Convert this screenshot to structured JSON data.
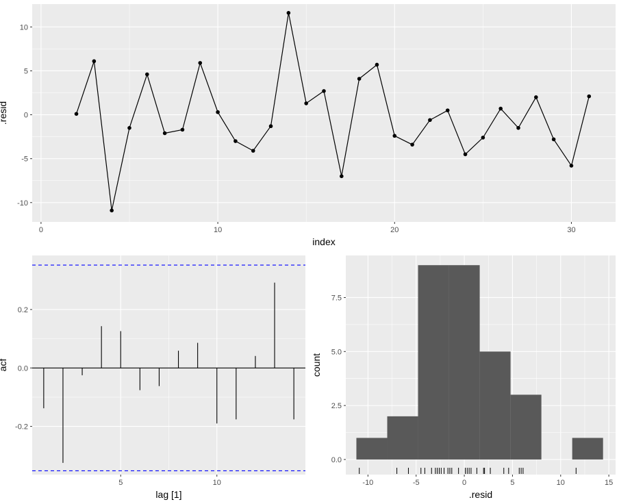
{
  "chart_data": [
    {
      "type": "line",
      "xlabel": "index",
      "ylabel": ".resid",
      "xlim": [
        -0.5,
        32.5
      ],
      "ylim": [
        -12.2,
        12.6
      ],
      "xticks": [
        0,
        10,
        20,
        30
      ],
      "yticks": [
        -10,
        -5,
        0,
        5,
        10
      ],
      "xtick_labels": [
        "0",
        "10",
        "20",
        "30"
      ],
      "ytick_labels": [
        "-10",
        "-5",
        "0",
        "5",
        "10"
      ],
      "x": [
        2,
        3,
        4,
        5,
        6,
        7,
        8,
        9,
        10,
        11,
        12,
        13,
        14,
        15,
        16,
        17,
        18,
        19,
        20,
        21,
        22,
        23,
        24,
        25,
        26,
        27,
        28,
        29,
        30,
        31
      ],
      "y": [
        0.1,
        6.1,
        -10.9,
        -1.5,
        4.6,
        -2.1,
        -1.7,
        5.9,
        0.3,
        -3.0,
        -4.1,
        -1.3,
        11.6,
        1.3,
        2.7,
        -7.0,
        4.1,
        5.7,
        -2.4,
        -3.4,
        -0.6,
        0.5,
        -4.5,
        -2.6,
        0.7,
        -1.5,
        2.0,
        -2.8,
        -5.8,
        2.1
      ],
      "grid": true
    },
    {
      "type": "bar",
      "subtype": "acf",
      "xlabel": "lag [1]",
      "ylabel": "acf",
      "xlim": [
        0.4,
        14.6
      ],
      "ylim": [
        -0.365,
        0.385
      ],
      "xticks": [
        5,
        10
      ],
      "yticks": [
        -0.2,
        0.0,
        0.2
      ],
      "xtick_labels": [
        "5",
        "10"
      ],
      "ytick_labels": [
        "-0.2",
        "0.0",
        "0.2"
      ],
      "lags": [
        1,
        2,
        3,
        4,
        5,
        6,
        7,
        8,
        9,
        10,
        11,
        12,
        13,
        14
      ],
      "values": [
        -0.138,
        -0.325,
        -0.025,
        0.143,
        0.126,
        -0.076,
        -0.062,
        0.059,
        0.086,
        -0.19,
        -0.176,
        0.041,
        0.292,
        -0.176
      ],
      "confidence_bounds": [
        -0.352,
        0.352
      ],
      "bound_color": "#0000ff",
      "grid": true
    },
    {
      "type": "bar",
      "subtype": "histogram",
      "xlabel": ".resid",
      "ylabel": "count",
      "xlim": [
        -12.3,
        15.7
      ],
      "ylim": [
        -0.7,
        9.45
      ],
      "xticks": [
        -10,
        -5,
        0,
        5,
        10,
        15
      ],
      "yticks": [
        0.0,
        2.5,
        5.0,
        7.5
      ],
      "xtick_labels": [
        "-10",
        "-5",
        "0",
        "5",
        "10",
        "15"
      ],
      "ytick_labels": [
        "0.0",
        "2.5",
        "5.0",
        "7.5"
      ],
      "bins": [
        {
          "from": -11.2,
          "to": -8.0,
          "count": 1
        },
        {
          "from": -8.0,
          "to": -4.8,
          "count": 2
        },
        {
          "from": -4.8,
          "to": -1.6,
          "count": 9
        },
        {
          "from": -1.6,
          "to": 1.6,
          "count": 9
        },
        {
          "from": 1.6,
          "to": 4.8,
          "count": 5
        },
        {
          "from": 4.8,
          "to": 8.0,
          "count": 3
        },
        {
          "from": 8.0,
          "to": 11.2,
          "count": 0
        },
        {
          "from": 11.2,
          "to": 14.4,
          "count": 1
        }
      ],
      "rug": [
        0.1,
        6.1,
        -10.9,
        -1.5,
        4.6,
        -2.1,
        -1.7,
        5.9,
        0.3,
        -3.0,
        -4.1,
        -1.3,
        11.6,
        1.3,
        2.7,
        -7.0,
        4.1,
        5.7,
        -2.4,
        -3.4,
        -0.6,
        0.5,
        -4.5,
        -2.6,
        0.7,
        -1.5,
        2.0,
        -2.8,
        -5.8,
        2.1
      ],
      "bar_color": "#595959",
      "grid": true
    }
  ],
  "style": {
    "panel_bg": "#ebebeb",
    "grid_major": "#ffffff",
    "text_color": "#4d4d4d"
  }
}
